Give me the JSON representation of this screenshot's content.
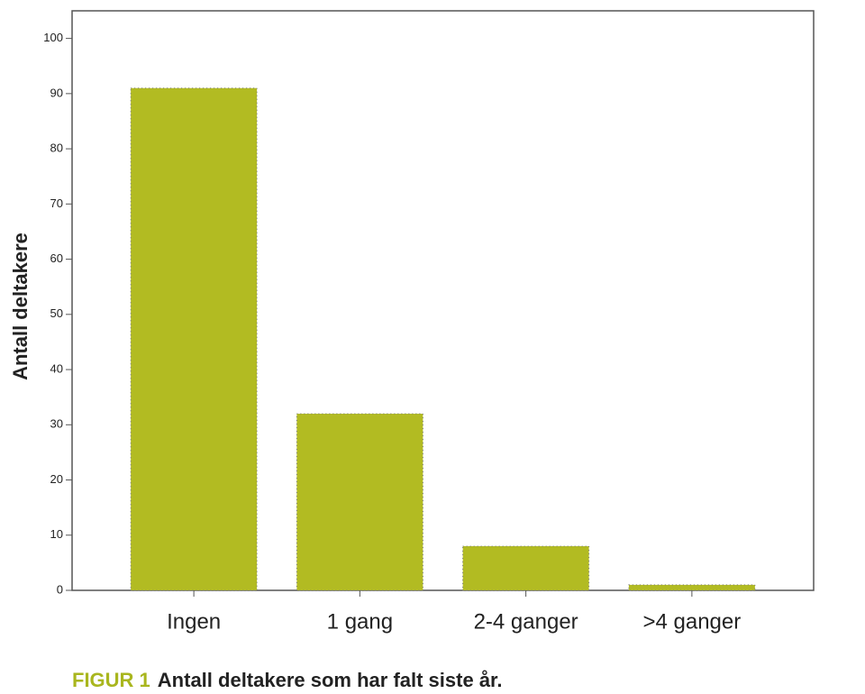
{
  "chart_data": {
    "type": "bar",
    "caption_label": "FIGUR 1",
    "title": "Antall deltakere som har falt siste år.",
    "y_label": "Antall deltakere",
    "categories": [
      "Ingen",
      "1 gang",
      "2-4 ganger",
      ">4 ganger"
    ],
    "values": [
      91,
      32,
      8,
      1
    ],
    "color": "#b2bb22",
    "caption_color": "#a9b61e",
    "ylim": [
      0,
      105
    ],
    "yticks": [
      0,
      10,
      20,
      30,
      40,
      50,
      60,
      70,
      80,
      90,
      100
    ],
    "grid": false
  }
}
